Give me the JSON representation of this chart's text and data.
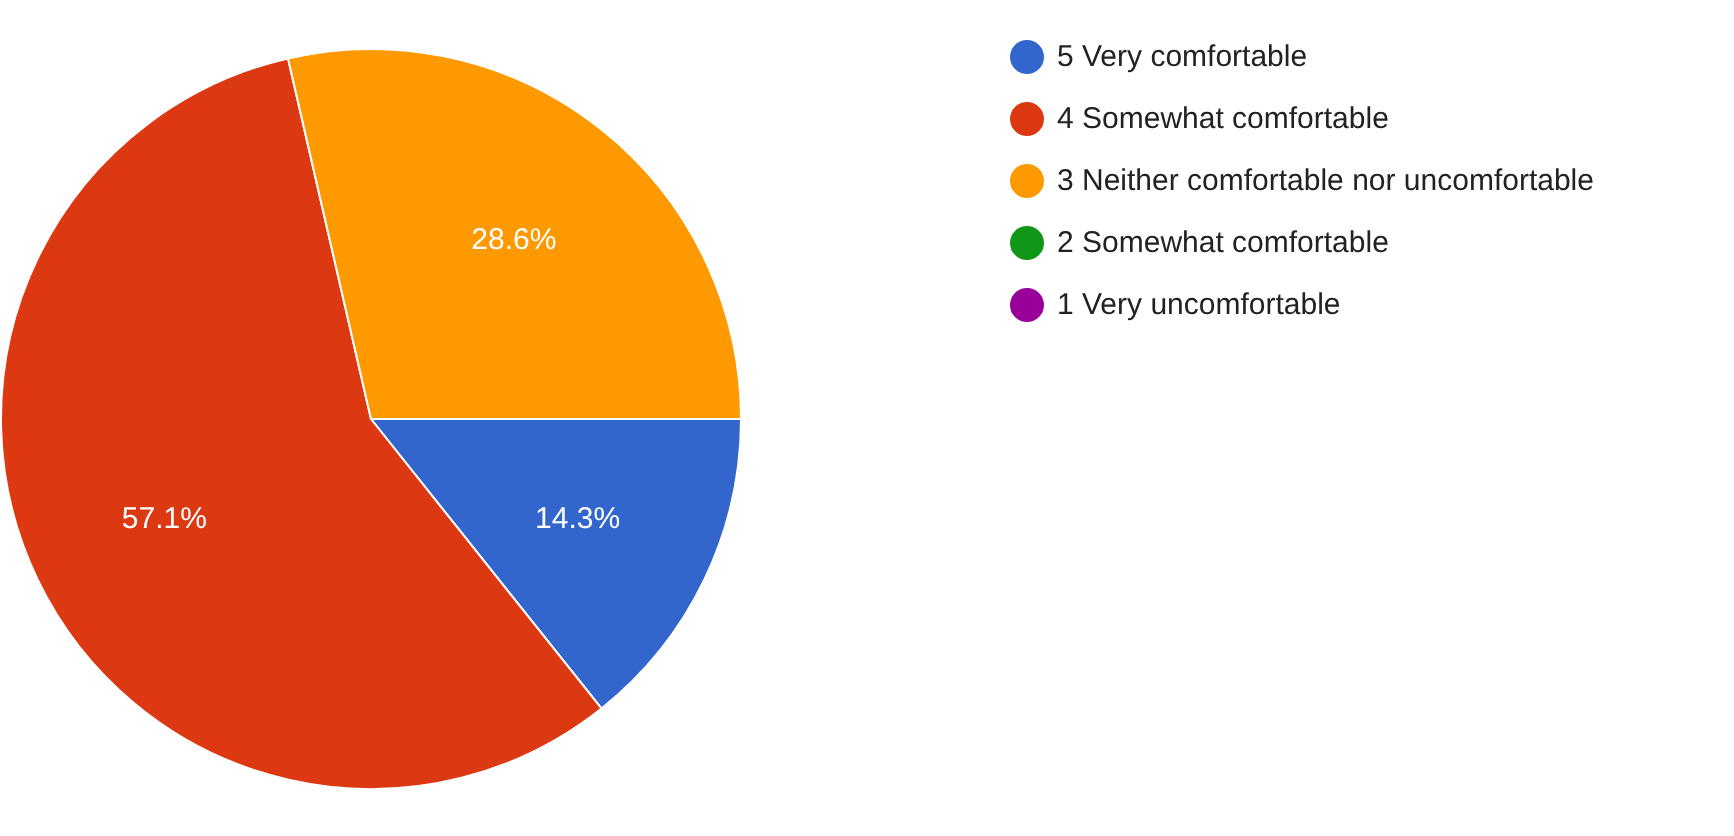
{
  "chart_data": {
    "type": "pie",
    "categories": [
      "5 Very comfortable",
      "4 Somewhat comfortable",
      "3 Neither comfortable nor uncomfortable",
      "2 Somewhat comfortable",
      "1 Very uncomfortable"
    ],
    "values": [
      14.3,
      57.1,
      28.6,
      0,
      0
    ],
    "colors": [
      "#3366cc",
      "#dc3912",
      "#ff9900",
      "#109618",
      "#990099"
    ],
    "value_labels": [
      "14.3%",
      "57.1%",
      "28.6%",
      null,
      null
    ],
    "legend": "right"
  }
}
